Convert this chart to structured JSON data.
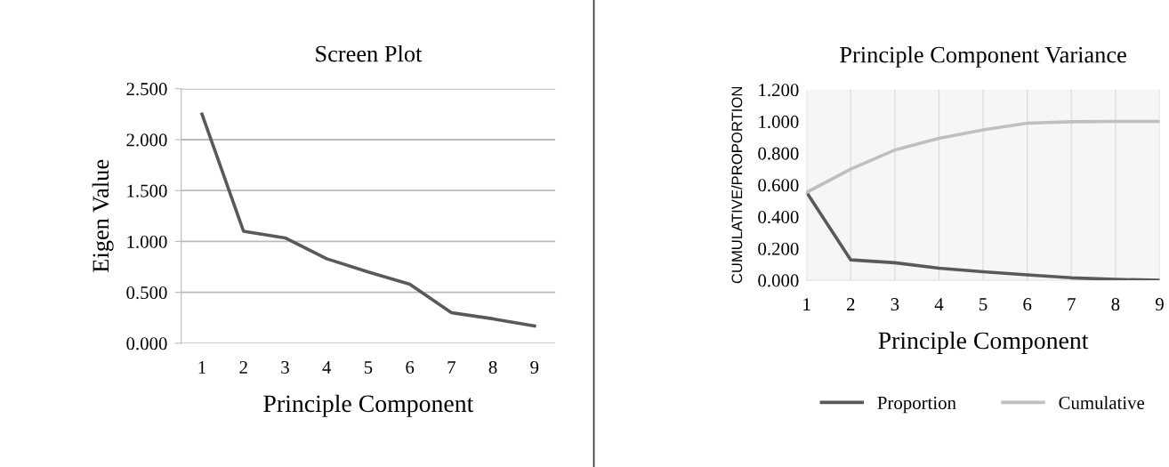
{
  "chart_data": [
    {
      "type": "line",
      "title": "Screen Plot",
      "xlabel": "Principle Component",
      "ylabel": "Eigen Value",
      "categories": [
        "1",
        "2",
        "3",
        "4",
        "5",
        "6",
        "7",
        "8",
        "9"
      ],
      "series": [
        {
          "color": "#595959",
          "values": [
            2.25,
            1.1,
            1.035,
            0.83,
            0.7,
            0.58,
            0.3,
            0.24,
            0.17
          ]
        }
      ],
      "ylim": [
        0,
        2.5
      ],
      "yticks": [
        {
          "value": 0,
          "label": "0.000"
        },
        {
          "value": 0.5,
          "label": "0.500"
        },
        {
          "value": 1,
          "label": "1.000"
        },
        {
          "value": 1.5,
          "label": "1.500"
        },
        {
          "value": 2,
          "label": "2.000"
        },
        {
          "value": 2.5,
          "label": "2.500"
        }
      ],
      "grid": "y",
      "legend": false
    },
    {
      "type": "line",
      "title": "Principle Component Variance",
      "xlabel": "Principle Component",
      "ylabel": "CUMULATIVE/PROPORTION",
      "categories": [
        "1",
        "2",
        "3",
        "4",
        "5",
        "6",
        "7",
        "8",
        "9"
      ],
      "series": [
        {
          "name": "Proportion",
          "color": "#595959",
          "values": [
            0.553,
            0.128,
            0.11,
            0.076,
            0.053,
            0.034,
            0.015,
            0.005,
            0.0
          ]
        },
        {
          "name": "Cumulative",
          "color": "#bfbfbf",
          "values": [
            0.553,
            0.7,
            0.82,
            0.894,
            0.947,
            0.989,
            0.998,
            1.0,
            1.0
          ]
        }
      ],
      "ylim": [
        0,
        1.2
      ],
      "yticks": [
        {
          "value": 0,
          "label": "0.000"
        },
        {
          "value": 0.2,
          "label": "0.200"
        },
        {
          "value": 0.4,
          "label": "0.400"
        },
        {
          "value": 0.6,
          "label": "0.600"
        },
        {
          "value": 0.8,
          "label": "0.800"
        },
        {
          "value": 1,
          "label": "1.000"
        },
        {
          "value": 1.2,
          "label": "1.200"
        }
      ],
      "grid": "x",
      "legend": "bottom"
    }
  ]
}
